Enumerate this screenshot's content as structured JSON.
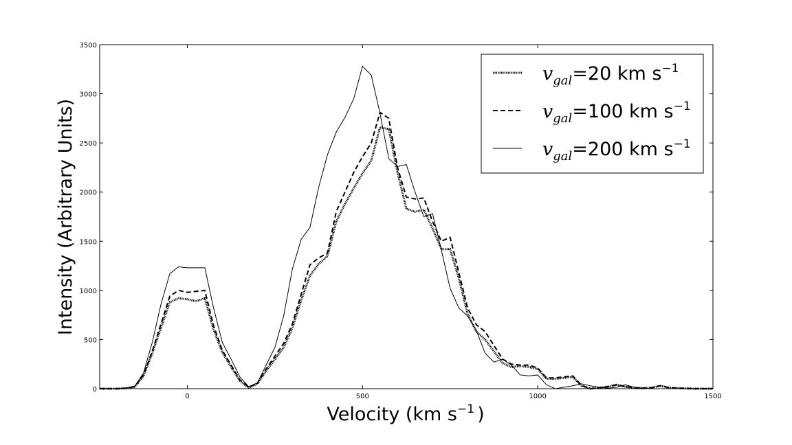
{
  "chart_data": {
    "type": "line",
    "xlabel": "Velocity  (km s",
    "xlabel_sup": "−1",
    "xlabel_end": ")",
    "ylabel": "Intensity (Arbitrary Units)",
    "xlim": [
      -250,
      1500
    ],
    "ylim": [
      0,
      3500
    ],
    "xticks": [
      0,
      500,
      1000,
      1500
    ],
    "yticks": [
      0,
      500,
      1000,
      1500,
      2000,
      2500,
      3000,
      3500
    ],
    "grid": false,
    "legend_position": "top-right",
    "series": [
      {
        "name_var": "v",
        "name_sub": "gal",
        "name_eq": "=",
        "name_value": "20 km s",
        "name_sup": "−1",
        "style": "dotted",
        "x": [
          -250,
          -200,
          -175,
          -150,
          -125,
          -100,
          -75,
          -50,
          -25,
          0,
          25,
          50,
          75,
          100,
          125,
          150,
          175,
          200,
          225,
          250,
          275,
          300,
          325,
          350,
          375,
          400,
          425,
          450,
          475,
          500,
          525,
          550,
          575,
          600,
          625,
          650,
          675,
          700,
          725,
          750,
          775,
          800,
          825,
          850,
          875,
          900,
          925,
          950,
          975,
          1000,
          1025,
          1050,
          1075,
          1100,
          1125,
          1150,
          1175,
          1200,
          1225,
          1250,
          1275,
          1300,
          1325,
          1350,
          1375,
          1400,
          1450,
          1500
        ],
        "y": [
          0,
          0,
          5,
          20,
          130,
          360,
          620,
          880,
          920,
          910,
          890,
          920,
          600,
          370,
          220,
          80,
          10,
          50,
          180,
          300,
          420,
          620,
          900,
          1150,
          1270,
          1350,
          1700,
          1880,
          2040,
          2190,
          2320,
          2660,
          2640,
          2200,
          1830,
          1800,
          1820,
          1630,
          1420,
          1420,
          1120,
          760,
          580,
          500,
          380,
          260,
          220,
          230,
          220,
          200,
          100,
          100,
          110,
          120,
          30,
          0,
          10,
          20,
          40,
          20,
          10,
          5,
          10,
          30,
          10,
          5,
          0,
          0
        ]
      },
      {
        "name_var": "v",
        "name_sub": "gal",
        "name_eq": "=",
        "name_value": "100 km s",
        "name_sup": "−1",
        "style": "dashed",
        "x": [
          -250,
          -200,
          -175,
          -150,
          -125,
          -100,
          -75,
          -50,
          -25,
          0,
          25,
          50,
          75,
          100,
          125,
          150,
          175,
          200,
          225,
          250,
          275,
          300,
          325,
          350,
          375,
          400,
          425,
          450,
          475,
          500,
          525,
          550,
          575,
          600,
          625,
          650,
          675,
          700,
          725,
          750,
          775,
          800,
          825,
          850,
          875,
          900,
          925,
          950,
          975,
          1000,
          1025,
          1050,
          1075,
          1100,
          1125,
          1150,
          1175,
          1200,
          1225,
          1250,
          1275,
          1300,
          1325,
          1350,
          1375,
          1400,
          1450,
          1500
        ],
        "y": [
          0,
          0,
          5,
          20,
          140,
          380,
          660,
          940,
          1000,
          980,
          990,
          1000,
          640,
          390,
          240,
          90,
          15,
          55,
          200,
          330,
          460,
          660,
          960,
          1260,
          1330,
          1380,
          1800,
          2000,
          2200,
          2360,
          2500,
          2810,
          2750,
          2250,
          1950,
          1930,
          1940,
          1700,
          1500,
          1540,
          1180,
          820,
          650,
          580,
          440,
          300,
          250,
          240,
          240,
          210,
          110,
          110,
          120,
          130,
          35,
          0,
          10,
          20,
          40,
          20,
          10,
          5,
          10,
          30,
          10,
          5,
          0,
          0
        ]
      },
      {
        "name_var": "v",
        "name_sub": "gal",
        "name_eq": "=",
        "name_value": "200 km s",
        "name_sup": "−1",
        "style": "solid",
        "x": [
          -250,
          -200,
          -175,
          -150,
          -125,
          -100,
          -75,
          -50,
          -25,
          0,
          25,
          50,
          75,
          100,
          125,
          150,
          175,
          200,
          225,
          250,
          275,
          300,
          325,
          350,
          375,
          400,
          425,
          450,
          475,
          500,
          525,
          550,
          575,
          600,
          625,
          650,
          675,
          700,
          725,
          750,
          775,
          800,
          825,
          850,
          875,
          900,
          925,
          950,
          975,
          1000,
          1025,
          1050,
          1075,
          1100,
          1125,
          1150,
          1175,
          1200,
          1225,
          1250,
          1275,
          1300,
          1325,
          1350,
          1375,
          1400,
          1450,
          1500
        ],
        "y": [
          0,
          0,
          5,
          25,
          160,
          470,
          860,
          1170,
          1240,
          1230,
          1230,
          1230,
          820,
          470,
          300,
          120,
          20,
          60,
          240,
          420,
          740,
          1220,
          1520,
          1640,
          2050,
          2380,
          2610,
          2760,
          2950,
          3280,
          3190,
          2800,
          2340,
          2260,
          2280,
          2000,
          1750,
          1780,
          1410,
          1020,
          820,
          740,
          590,
          360,
          270,
          300,
          240,
          140,
          130,
          140,
          40,
          0,
          15,
          30,
          50,
          30,
          15,
          5,
          15,
          40,
          15,
          5,
          0,
          0,
          0,
          0,
          0,
          0
        ]
      }
    ]
  }
}
